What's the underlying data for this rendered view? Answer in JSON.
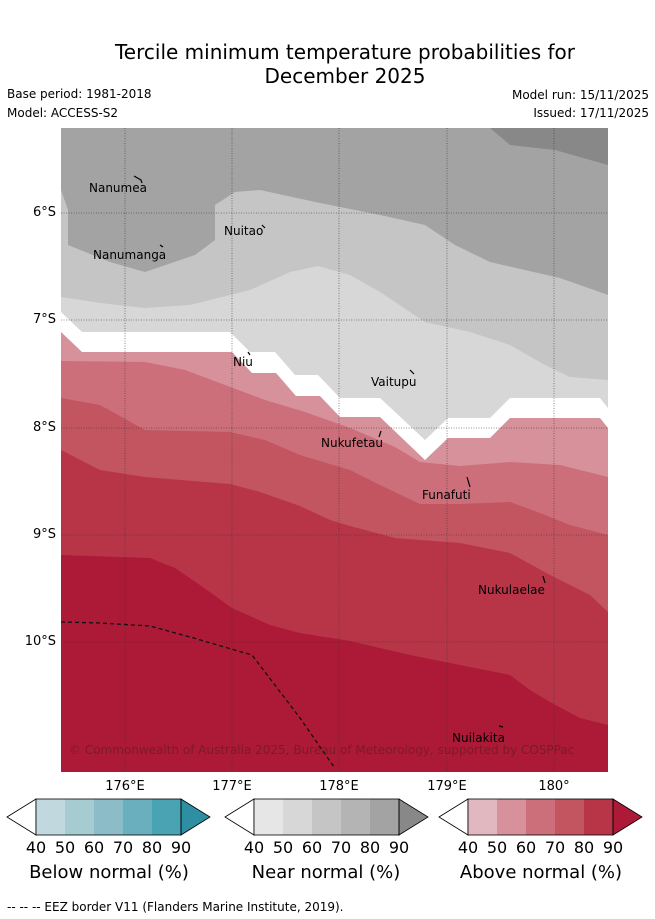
{
  "title_line1": "Tercile minimum temperature probabilities for",
  "title_line2": "December 2025",
  "base_period": "Base period: 1981-2018",
  "model": "Model: ACCESS-S2",
  "model_run": "Model run: 15/11/2025",
  "issued": "Issued: 17/11/2025",
  "lat_ticks": [
    "6°S",
    "7°S",
    "8°S",
    "9°S",
    "10°S"
  ],
  "lon_ticks": [
    "176°E",
    "177°E",
    "178°E",
    "179°E",
    "180°"
  ],
  "places": [
    "Nanumea",
    "Nanumanga",
    "Nuitao",
    "Niu",
    "Vaitupu",
    "Nukufetau",
    "Funafuti",
    "Nukulaelae",
    "Nuilakita"
  ],
  "copyright": "© Commonwealth of Australia 2025, Bureau of Meteorology, supported by COSPPac",
  "colorbars": [
    {
      "title": "Below normal (%)",
      "ticks": [
        "40",
        "50",
        "60",
        "70",
        "80",
        "90"
      ],
      "colors": [
        "#c0d8de",
        "#a6cbd1",
        "#8bbcc7",
        "#6aafbd",
        "#4aa3b3",
        "#2e8ea2"
      ]
    },
    {
      "title": "Near normal (%)",
      "ticks": [
        "40",
        "50",
        "60",
        "70",
        "80",
        "90"
      ],
      "colors": [
        "#e6e6e6",
        "#d7d7d7",
        "#c5c5c5",
        "#b4b4b4",
        "#a3a3a3",
        "#888888"
      ]
    },
    {
      "title": "Above normal (%)",
      "ticks": [
        "40",
        "50",
        "60",
        "70",
        "80",
        "90"
      ],
      "colors": [
        "#e1b8bf",
        "#d6919b",
        "#cc6f7a",
        "#c25560",
        "#b83548",
        "#ad1a37"
      ]
    }
  ],
  "footer": "-- -- -- EEZ border V11 (Flanders Marine Institute, 2019)."
}
